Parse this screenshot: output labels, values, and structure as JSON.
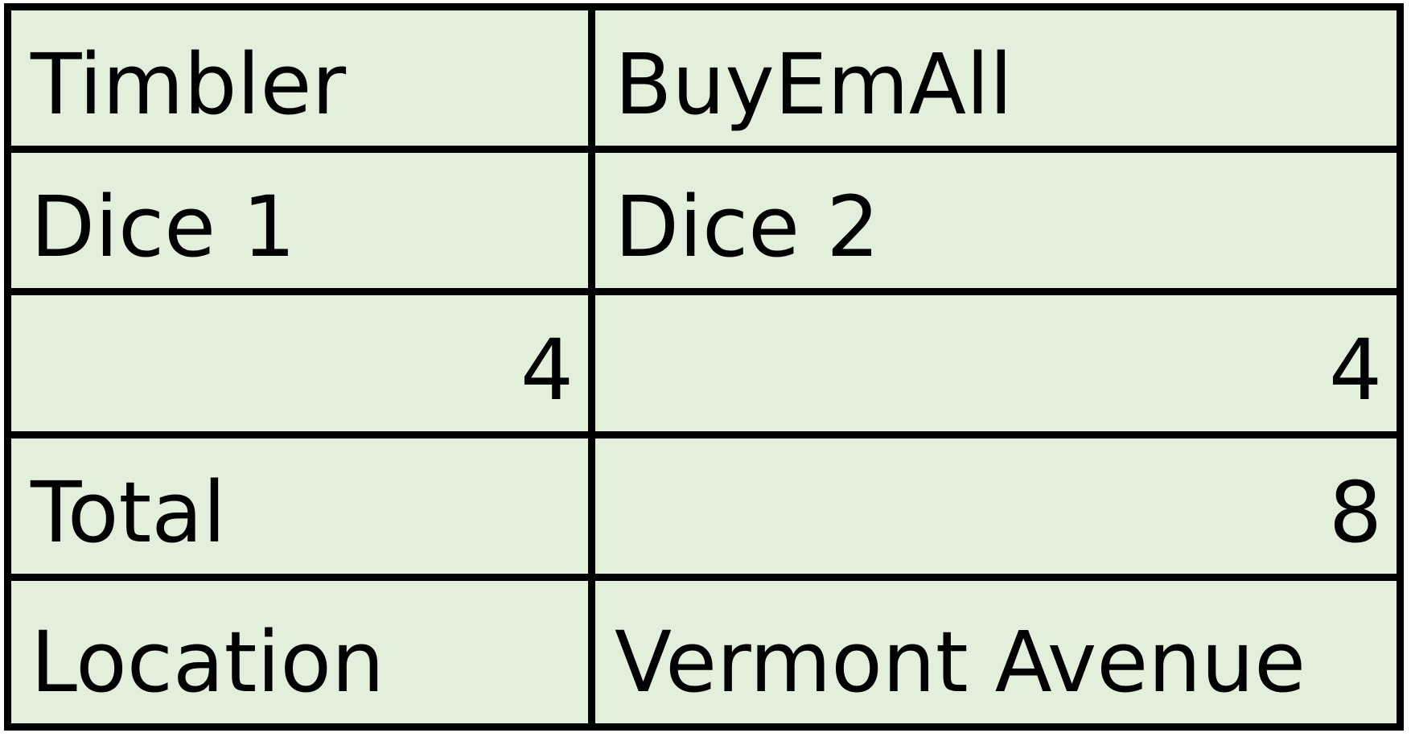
{
  "colors": {
    "cell_fill": "#e2efda",
    "grid_lines": "#000000",
    "text": "#000000"
  },
  "table": {
    "rows": [
      {
        "a": "Timbler",
        "b": "BuyEmAll"
      },
      {
        "a": "Dice 1",
        "b": "Dice 2"
      },
      {
        "a": "4",
        "b": "4"
      },
      {
        "a": "Total",
        "b": "8"
      },
      {
        "a": "Location",
        "b": "Vermont Avenue"
      }
    ]
  }
}
